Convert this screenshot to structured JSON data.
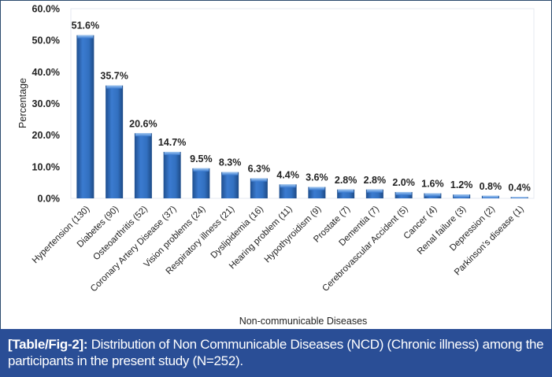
{
  "chart_data": {
    "type": "bar",
    "title": "",
    "xlabel": "Non-communicable Diseases",
    "ylabel": "Percentage",
    "ylim": [
      0,
      60
    ],
    "yticks": [
      0,
      10,
      20,
      30,
      40,
      50,
      60
    ],
    "ytick_labels": [
      "0.0%",
      "10.0%",
      "20.0%",
      "30.0%",
      "40.0%",
      "50.0%",
      "60.0%"
    ],
    "grid": false,
    "legend": "none",
    "bar_color": "#2f6cb8",
    "categories": [
      "Hypertension (130)",
      "Diabetes (90)",
      "Osteoarthritis (52)",
      "Coronary Artery Disease (37)",
      "Vision problems (24)",
      "Respiratory illness (21)",
      "Dyslipidemia (16)",
      "Hearing problem (11)",
      "Hypothyroidism (9)",
      "Prostate (7)",
      "Dementia (7)",
      "Cerebrovascular Accident (5)",
      "Cancer (4)",
      "Renal failure (3)",
      "Depression (2)",
      "Parkinson's disease (1)"
    ],
    "values": [
      51.6,
      35.7,
      20.6,
      14.7,
      9.5,
      8.3,
      6.3,
      4.4,
      3.6,
      2.8,
      2.8,
      2.0,
      1.6,
      1.2,
      0.8,
      0.4
    ],
    "data_labels": [
      "51.6%",
      "35.7%",
      "20.6%",
      "14.7%",
      "9.5%",
      "8.3%",
      "6.3%",
      "4.4%",
      "3.6%",
      "2.8%",
      "2.8%",
      "2.0%",
      "1.6%",
      "1.2%",
      "0.8%",
      "0.4%"
    ]
  },
  "caption": {
    "label": "[Table/Fig-2]:",
    "text": " Distribution of Non Communicable Diseases (NCD) (Chronic illness) among the participants in the present study (N=252)."
  }
}
